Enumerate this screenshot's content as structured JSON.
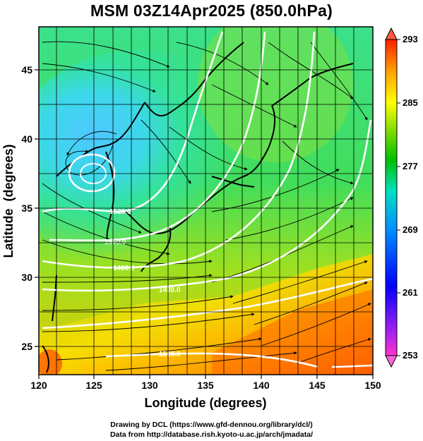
{
  "title": "MSM 03Z14Apr2025 (850.0hPa)",
  "map": {
    "x_axis": {
      "label": "Longitude (degrees)",
      "range": [
        120,
        150
      ],
      "ticks": [
        "120",
        "125",
        "130",
        "135",
        "140",
        "145",
        "150"
      ]
    },
    "y_axis": {
      "label": "Latitude  (degrees)",
      "range": [
        22.4,
        47.6
      ],
      "ticks": [
        "25",
        "30",
        "35",
        "40",
        "45"
      ]
    },
    "contour_labels": [
      "1520.0",
      "1560.0",
      "1400.0",
      "1480.0",
      "1500.0"
    ],
    "contour_interval_units": "geopotential height (m)",
    "low_center": {
      "lon": 125.2,
      "lat": 38.1
    },
    "streamlines": "wind field at 850 hPa"
  },
  "colorbar": {
    "ticks": [
      "293",
      "285",
      "277",
      "269",
      "261",
      "253"
    ],
    "range": [
      253,
      293
    ],
    "colors": [
      "#ff00aa",
      "#8a2be2",
      "#0000ff",
      "#00bfff",
      "#00e5a8",
      "#00c000",
      "#7fe000",
      "#ffff00",
      "#ffa000",
      "#ff3000"
    ]
  },
  "credits": {
    "line1": "Drawing by DCL (https://www.gfd-dennou.org/library/dcl/)",
    "line2": "Data from http://database.rish.kyoto-u.ac.jp/arch/jmadata/"
  }
}
